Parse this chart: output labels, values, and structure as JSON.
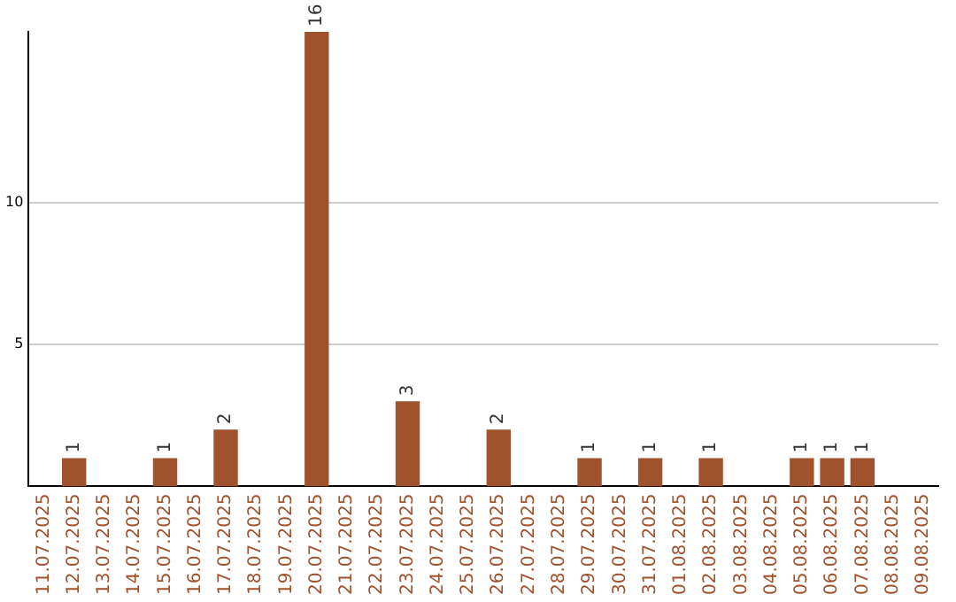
{
  "chart_data": {
    "type": "bar",
    "categories": [
      "11.07.2025",
      "12.07.2025",
      "13.07.2025",
      "14.07.2025",
      "15.07.2025",
      "16.07.2025",
      "17.07.2025",
      "18.07.2025",
      "19.07.2025",
      "20.07.2025",
      "21.07.2025",
      "22.07.2025",
      "23.07.2025",
      "24.07.2025",
      "25.07.2025",
      "26.07.2025",
      "27.07.2025",
      "28.07.2025",
      "29.07.2025",
      "30.07.2025",
      "31.07.2025",
      "01.08.2025",
      "02.08.2025",
      "03.08.2025",
      "04.08.2025",
      "05.08.2025",
      "06.08.2025",
      "07.08.2025",
      "08.08.2025",
      "09.08.2025"
    ],
    "values": [
      0,
      1,
      0,
      0,
      1,
      0,
      2,
      0,
      0,
      16,
      0,
      0,
      3,
      0,
      0,
      2,
      0,
      0,
      1,
      0,
      1,
      0,
      1,
      0,
      0,
      1,
      1,
      1,
      0,
      0
    ],
    "value_labels": [
      null,
      "1",
      null,
      null,
      "1",
      null,
      "2",
      null,
      null,
      "16",
      null,
      null,
      "3",
      null,
      null,
      "2",
      null,
      null,
      "1",
      null,
      "1",
      null,
      "1",
      null,
      null,
      "1",
      "1",
      "1",
      null,
      null
    ],
    "color": "#a0522d",
    "ylim": [
      0,
      16
    ],
    "yticks": [
      5,
      10
    ],
    "grid": "y",
    "legend": false
  }
}
